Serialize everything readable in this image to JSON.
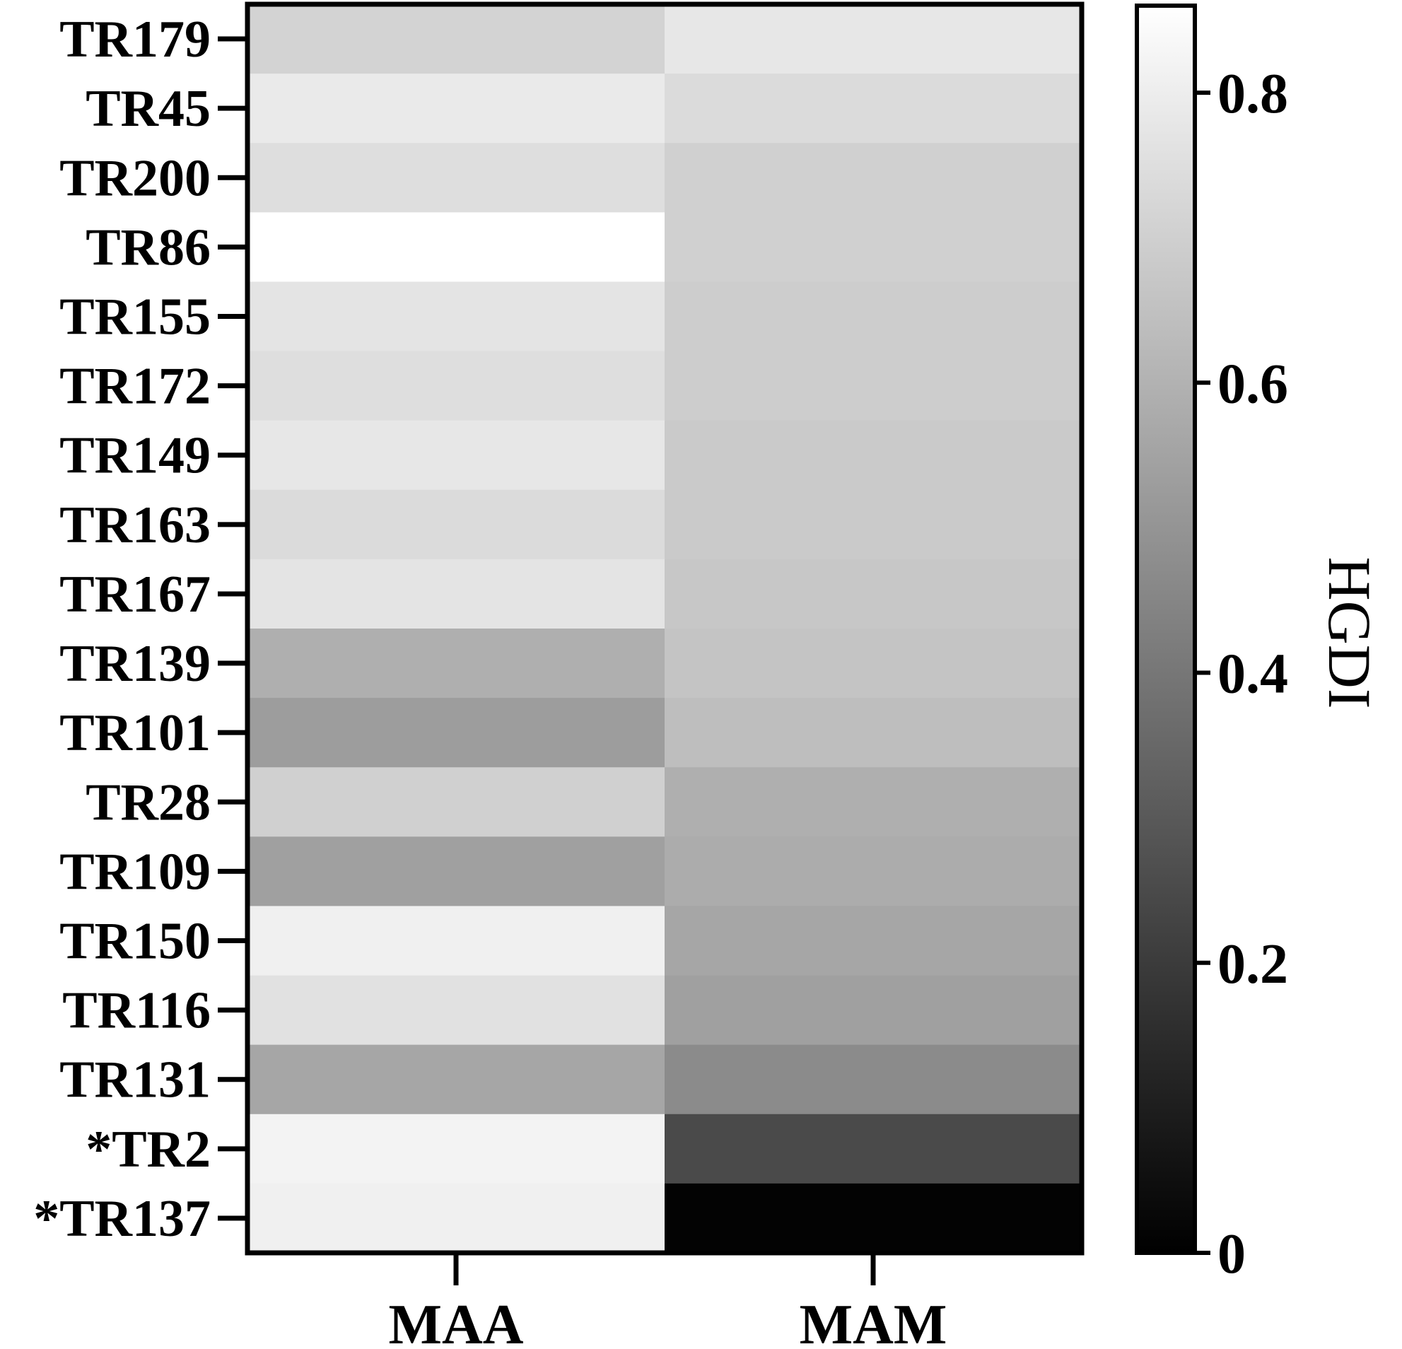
{
  "chart_data": {
    "type": "heatmap",
    "title": "",
    "xlabel": "",
    "ylabel": "",
    "columns": [
      "MAA",
      "MAM"
    ],
    "rows": [
      "TR179",
      "TR45",
      "TR200",
      "TR86",
      "TR155",
      "TR172",
      "TR149",
      "TR163",
      "TR167",
      "TR139",
      "TR101",
      "TR28",
      "TR109",
      "TR150",
      "TR116",
      "TR131",
      "*TR2",
      "*TR137"
    ],
    "values": [
      [
        0.71,
        0.78
      ],
      [
        0.79,
        0.74
      ],
      [
        0.75,
        0.7
      ],
      [
        0.86,
        0.7
      ],
      [
        0.77,
        0.69
      ],
      [
        0.75,
        0.69
      ],
      [
        0.78,
        0.68
      ],
      [
        0.74,
        0.68
      ],
      [
        0.77,
        0.67
      ],
      [
        0.59,
        0.66
      ],
      [
        0.53,
        0.64
      ],
      [
        0.7,
        0.59
      ],
      [
        0.54,
        0.58
      ],
      [
        0.81,
        0.56
      ],
      [
        0.76,
        0.54
      ],
      [
        0.56,
        0.47
      ],
      [
        0.82,
        0.25
      ],
      [
        0.81,
        0.01
      ]
    ],
    "colorbar": {
      "label": "HGDI",
      "range": [
        0,
        0.86
      ],
      "ticks": [
        "0",
        "0.2",
        "0.4",
        "0.6",
        "0.8"
      ],
      "tick_values": [
        0,
        0.2,
        0.4,
        0.6,
        0.8
      ],
      "colormap": "grayscale (black = 0, white = max)"
    },
    "grid": false,
    "legend": "colorbar right"
  }
}
